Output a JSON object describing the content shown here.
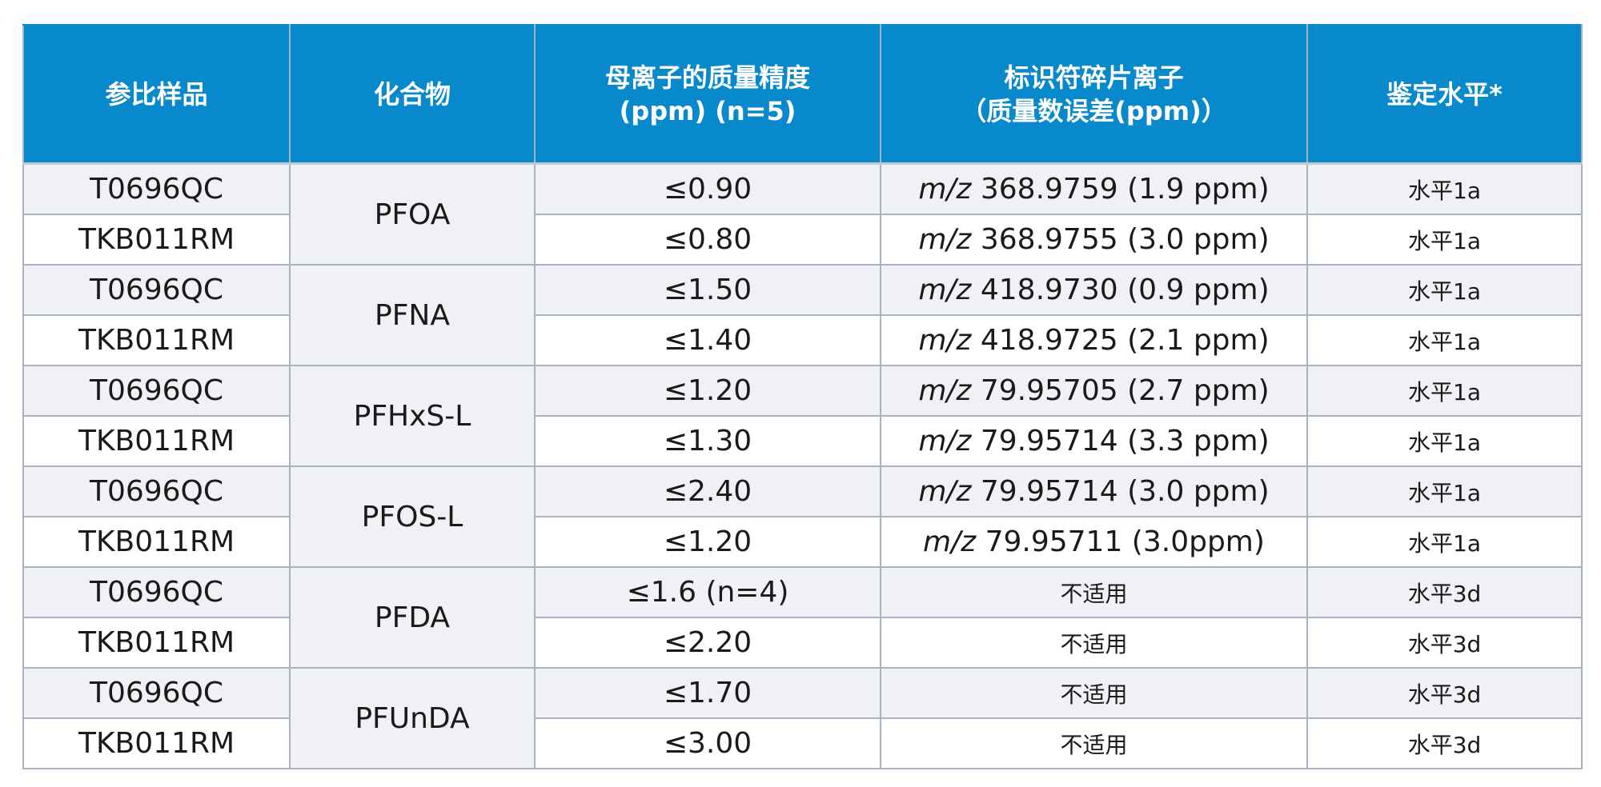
{
  "headers": {
    "col1": [
      "参比样品"
    ],
    "col2": [
      "化合物"
    ],
    "col3": [
      "母离子的质量精度",
      "(ppm) (n=5)"
    ],
    "col4": [
      "标识符碎片离子",
      "（质量数误差(ppm)）"
    ],
    "col5": [
      "鉴定水平*"
    ]
  },
  "compounds": [
    "PFOA",
    "PFNA",
    "PFHxS-L",
    "PFOS-L",
    "PFDA",
    "PFUnDA"
  ],
  "rows": [
    {
      "sample": "T0696QC",
      "accuracy": "≤0.90",
      "mz_prefix": "m/z",
      "fragment": "368.9759 (1.9 ppm)",
      "level": "水平1a"
    },
    {
      "sample": "TKB011RM",
      "accuracy": "≤0.80",
      "mz_prefix": "m/z",
      "fragment": "368.9755 (3.0 ppm)",
      "level": "水平1a"
    },
    {
      "sample": "T0696QC",
      "accuracy": "≤1.50",
      "mz_prefix": "m/z",
      "fragment": "418.9730 (0.9 ppm)",
      "level": "水平1a"
    },
    {
      "sample": "TKB011RM",
      "accuracy": "≤1.40",
      "mz_prefix": "m/z",
      "fragment": "418.9725 (2.1 ppm)",
      "level": "水平1a"
    },
    {
      "sample": "T0696QC",
      "accuracy": "≤1.20",
      "mz_prefix": "m/z",
      "fragment": "79.95705 (2.7 ppm)",
      "level": "水平1a"
    },
    {
      "sample": "TKB011RM",
      "accuracy": "≤1.30",
      "mz_prefix": "m/z",
      "fragment": "79.95714 (3.3 ppm)",
      "level": "水平1a"
    },
    {
      "sample": "T0696QC",
      "accuracy": "≤2.40",
      "mz_prefix": "m/z",
      "fragment": "79.95714 (3.0 ppm)",
      "level": "水平1a"
    },
    {
      "sample": "TKB011RM",
      "accuracy": "≤1.20",
      "mz_prefix": "m/z",
      "fragment": "79.95711 (3.0ppm)",
      "level": "水平1a"
    },
    {
      "sample": "T0696QC",
      "accuracy": "≤1.6 (n=4)",
      "mz_prefix": "",
      "fragment": "不适用",
      "level": "水平3d"
    },
    {
      "sample": "TKB011RM",
      "accuracy": "≤2.20",
      "mz_prefix": "",
      "fragment": "不适用",
      "level": "水平3d"
    },
    {
      "sample": "T0696QC",
      "accuracy": "≤1.70",
      "mz_prefix": "",
      "fragment": "不适用",
      "level": "水平3d"
    },
    {
      "sample": "TKB011RM",
      "accuracy": "≤3.00",
      "mz_prefix": "",
      "fragment": "不适用",
      "level": "水平3d"
    }
  ],
  "colors": {
    "header_bg": "#0789cc",
    "header_text": "#ffffff",
    "shade_row": "#f0f1f4",
    "border": "#a8b3bf"
  }
}
